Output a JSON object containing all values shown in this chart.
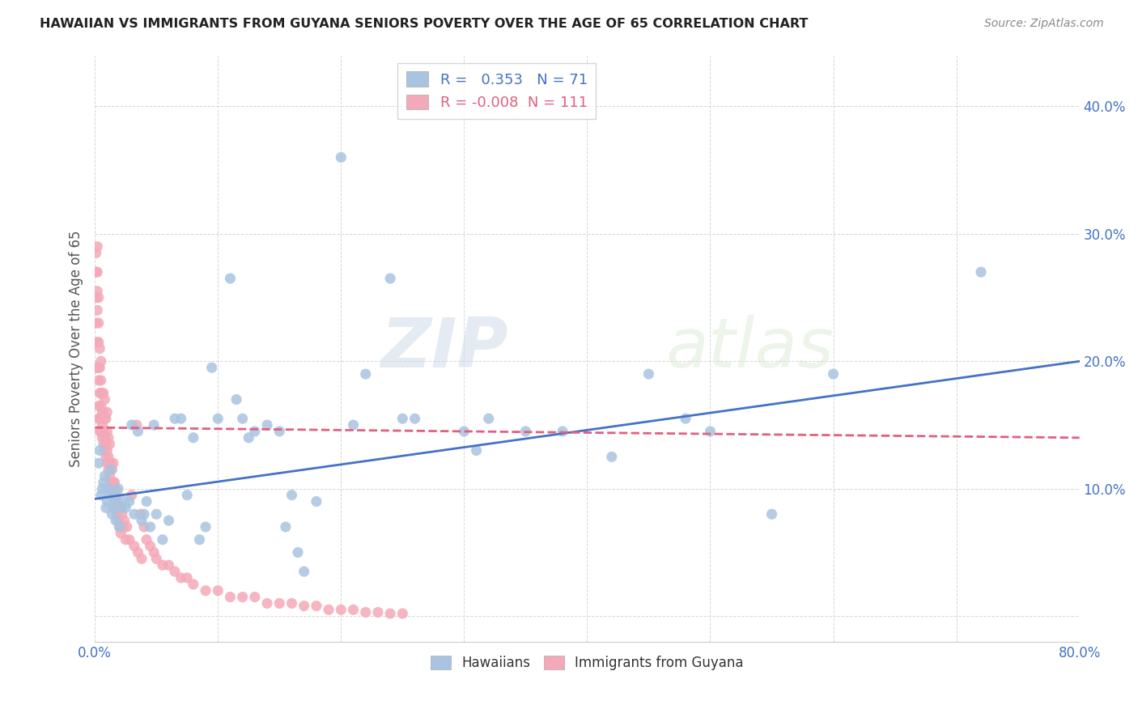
{
  "title": "HAWAIIAN VS IMMIGRANTS FROM GUYANA SENIORS POVERTY OVER THE AGE OF 65 CORRELATION CHART",
  "source": "Source: ZipAtlas.com",
  "ylabel": "Seniors Poverty Over the Age of 65",
  "xlim": [
    0.0,
    0.8
  ],
  "ylim": [
    -0.02,
    0.44
  ],
  "hawaiian_R": 0.353,
  "hawaiian_N": 71,
  "guyana_R": -0.008,
  "guyana_N": 111,
  "hawaiian_color": "#a8c4e0",
  "guyana_color": "#f4a9b8",
  "hawaiian_line_color": "#4472c4",
  "guyana_line_color": "#e06080",
  "watermark_zip": "ZIP",
  "watermark_atlas": "atlas",
  "legend_label_hawaiians": "Hawaiians",
  "legend_label_guyana": "Immigrants from Guyana",
  "hawaiian_x": [
    0.003,
    0.004,
    0.005,
    0.006,
    0.007,
    0.008,
    0.009,
    0.01,
    0.011,
    0.012,
    0.013,
    0.014,
    0.015,
    0.016,
    0.017,
    0.018,
    0.019,
    0.02,
    0.022,
    0.024,
    0.025,
    0.028,
    0.03,
    0.032,
    0.035,
    0.038,
    0.04,
    0.042,
    0.045,
    0.048,
    0.05,
    0.055,
    0.06,
    0.065,
    0.07,
    0.075,
    0.08,
    0.085,
    0.09,
    0.095,
    0.1,
    0.11,
    0.115,
    0.12,
    0.125,
    0.13,
    0.14,
    0.15,
    0.155,
    0.16,
    0.165,
    0.17,
    0.18,
    0.2,
    0.21,
    0.22,
    0.24,
    0.26,
    0.3,
    0.31,
    0.32,
    0.35,
    0.38,
    0.42,
    0.45,
    0.48,
    0.5,
    0.55,
    0.6,
    0.72,
    0.25
  ],
  "hawaiian_y": [
    0.12,
    0.13,
    0.095,
    0.1,
    0.105,
    0.11,
    0.085,
    0.09,
    0.1,
    0.095,
    0.115,
    0.08,
    0.085,
    0.095,
    0.075,
    0.09,
    0.1,
    0.07,
    0.085,
    0.09,
    0.085,
    0.09,
    0.15,
    0.08,
    0.145,
    0.075,
    0.08,
    0.09,
    0.07,
    0.15,
    0.08,
    0.06,
    0.075,
    0.155,
    0.155,
    0.095,
    0.14,
    0.06,
    0.07,
    0.195,
    0.155,
    0.265,
    0.17,
    0.155,
    0.14,
    0.145,
    0.15,
    0.145,
    0.07,
    0.095,
    0.05,
    0.035,
    0.09,
    0.36,
    0.15,
    0.19,
    0.265,
    0.155,
    0.145,
    0.13,
    0.155,
    0.145,
    0.145,
    0.125,
    0.19,
    0.155,
    0.145,
    0.08,
    0.19,
    0.27,
    0.155
  ],
  "guyana_x": [
    0.001,
    0.001,
    0.001,
    0.001,
    0.001,
    0.002,
    0.002,
    0.002,
    0.002,
    0.002,
    0.002,
    0.003,
    0.003,
    0.003,
    0.003,
    0.003,
    0.003,
    0.003,
    0.004,
    0.004,
    0.004,
    0.004,
    0.004,
    0.005,
    0.005,
    0.005,
    0.005,
    0.005,
    0.005,
    0.006,
    0.006,
    0.006,
    0.006,
    0.007,
    0.007,
    0.007,
    0.007,
    0.008,
    0.008,
    0.008,
    0.008,
    0.009,
    0.009,
    0.009,
    0.01,
    0.01,
    0.01,
    0.01,
    0.011,
    0.011,
    0.011,
    0.012,
    0.012,
    0.012,
    0.013,
    0.013,
    0.014,
    0.014,
    0.015,
    0.015,
    0.015,
    0.016,
    0.016,
    0.017,
    0.017,
    0.018,
    0.018,
    0.019,
    0.02,
    0.02,
    0.021,
    0.022,
    0.023,
    0.024,
    0.025,
    0.026,
    0.028,
    0.03,
    0.032,
    0.034,
    0.035,
    0.037,
    0.038,
    0.04,
    0.042,
    0.045,
    0.048,
    0.05,
    0.055,
    0.06,
    0.065,
    0.07,
    0.075,
    0.08,
    0.09,
    0.1,
    0.11,
    0.12,
    0.13,
    0.14,
    0.15,
    0.16,
    0.17,
    0.18,
    0.19,
    0.2,
    0.21,
    0.22,
    0.23,
    0.24,
    0.25
  ],
  "guyana_y": [
    0.195,
    0.23,
    0.25,
    0.27,
    0.285,
    0.195,
    0.215,
    0.24,
    0.255,
    0.27,
    0.29,
    0.155,
    0.165,
    0.185,
    0.195,
    0.215,
    0.23,
    0.25,
    0.145,
    0.155,
    0.175,
    0.195,
    0.21,
    0.145,
    0.155,
    0.165,
    0.175,
    0.185,
    0.2,
    0.14,
    0.15,
    0.16,
    0.175,
    0.135,
    0.145,
    0.16,
    0.175,
    0.13,
    0.14,
    0.155,
    0.17,
    0.125,
    0.135,
    0.155,
    0.12,
    0.13,
    0.145,
    0.16,
    0.115,
    0.125,
    0.14,
    0.11,
    0.12,
    0.135,
    0.105,
    0.12,
    0.1,
    0.115,
    0.095,
    0.105,
    0.12,
    0.09,
    0.105,
    0.085,
    0.1,
    0.08,
    0.095,
    0.075,
    0.07,
    0.085,
    0.065,
    0.08,
    0.07,
    0.075,
    0.06,
    0.07,
    0.06,
    0.095,
    0.055,
    0.15,
    0.05,
    0.08,
    0.045,
    0.07,
    0.06,
    0.055,
    0.05,
    0.045,
    0.04,
    0.04,
    0.035,
    0.03,
    0.03,
    0.025,
    0.02,
    0.02,
    0.015,
    0.015,
    0.015,
    0.01,
    0.01,
    0.01,
    0.008,
    0.008,
    0.005,
    0.005,
    0.005,
    0.003,
    0.003,
    0.002,
    0.002
  ],
  "hawaiian_line_start_x": 0.0,
  "hawaiian_line_start_y": 0.092,
  "hawaiian_line_end_x": 0.8,
  "hawaiian_line_end_y": 0.2,
  "guyana_line_start_x": 0.0,
  "guyana_line_start_y": 0.148,
  "guyana_line_end_x": 0.8,
  "guyana_line_end_y": 0.14
}
